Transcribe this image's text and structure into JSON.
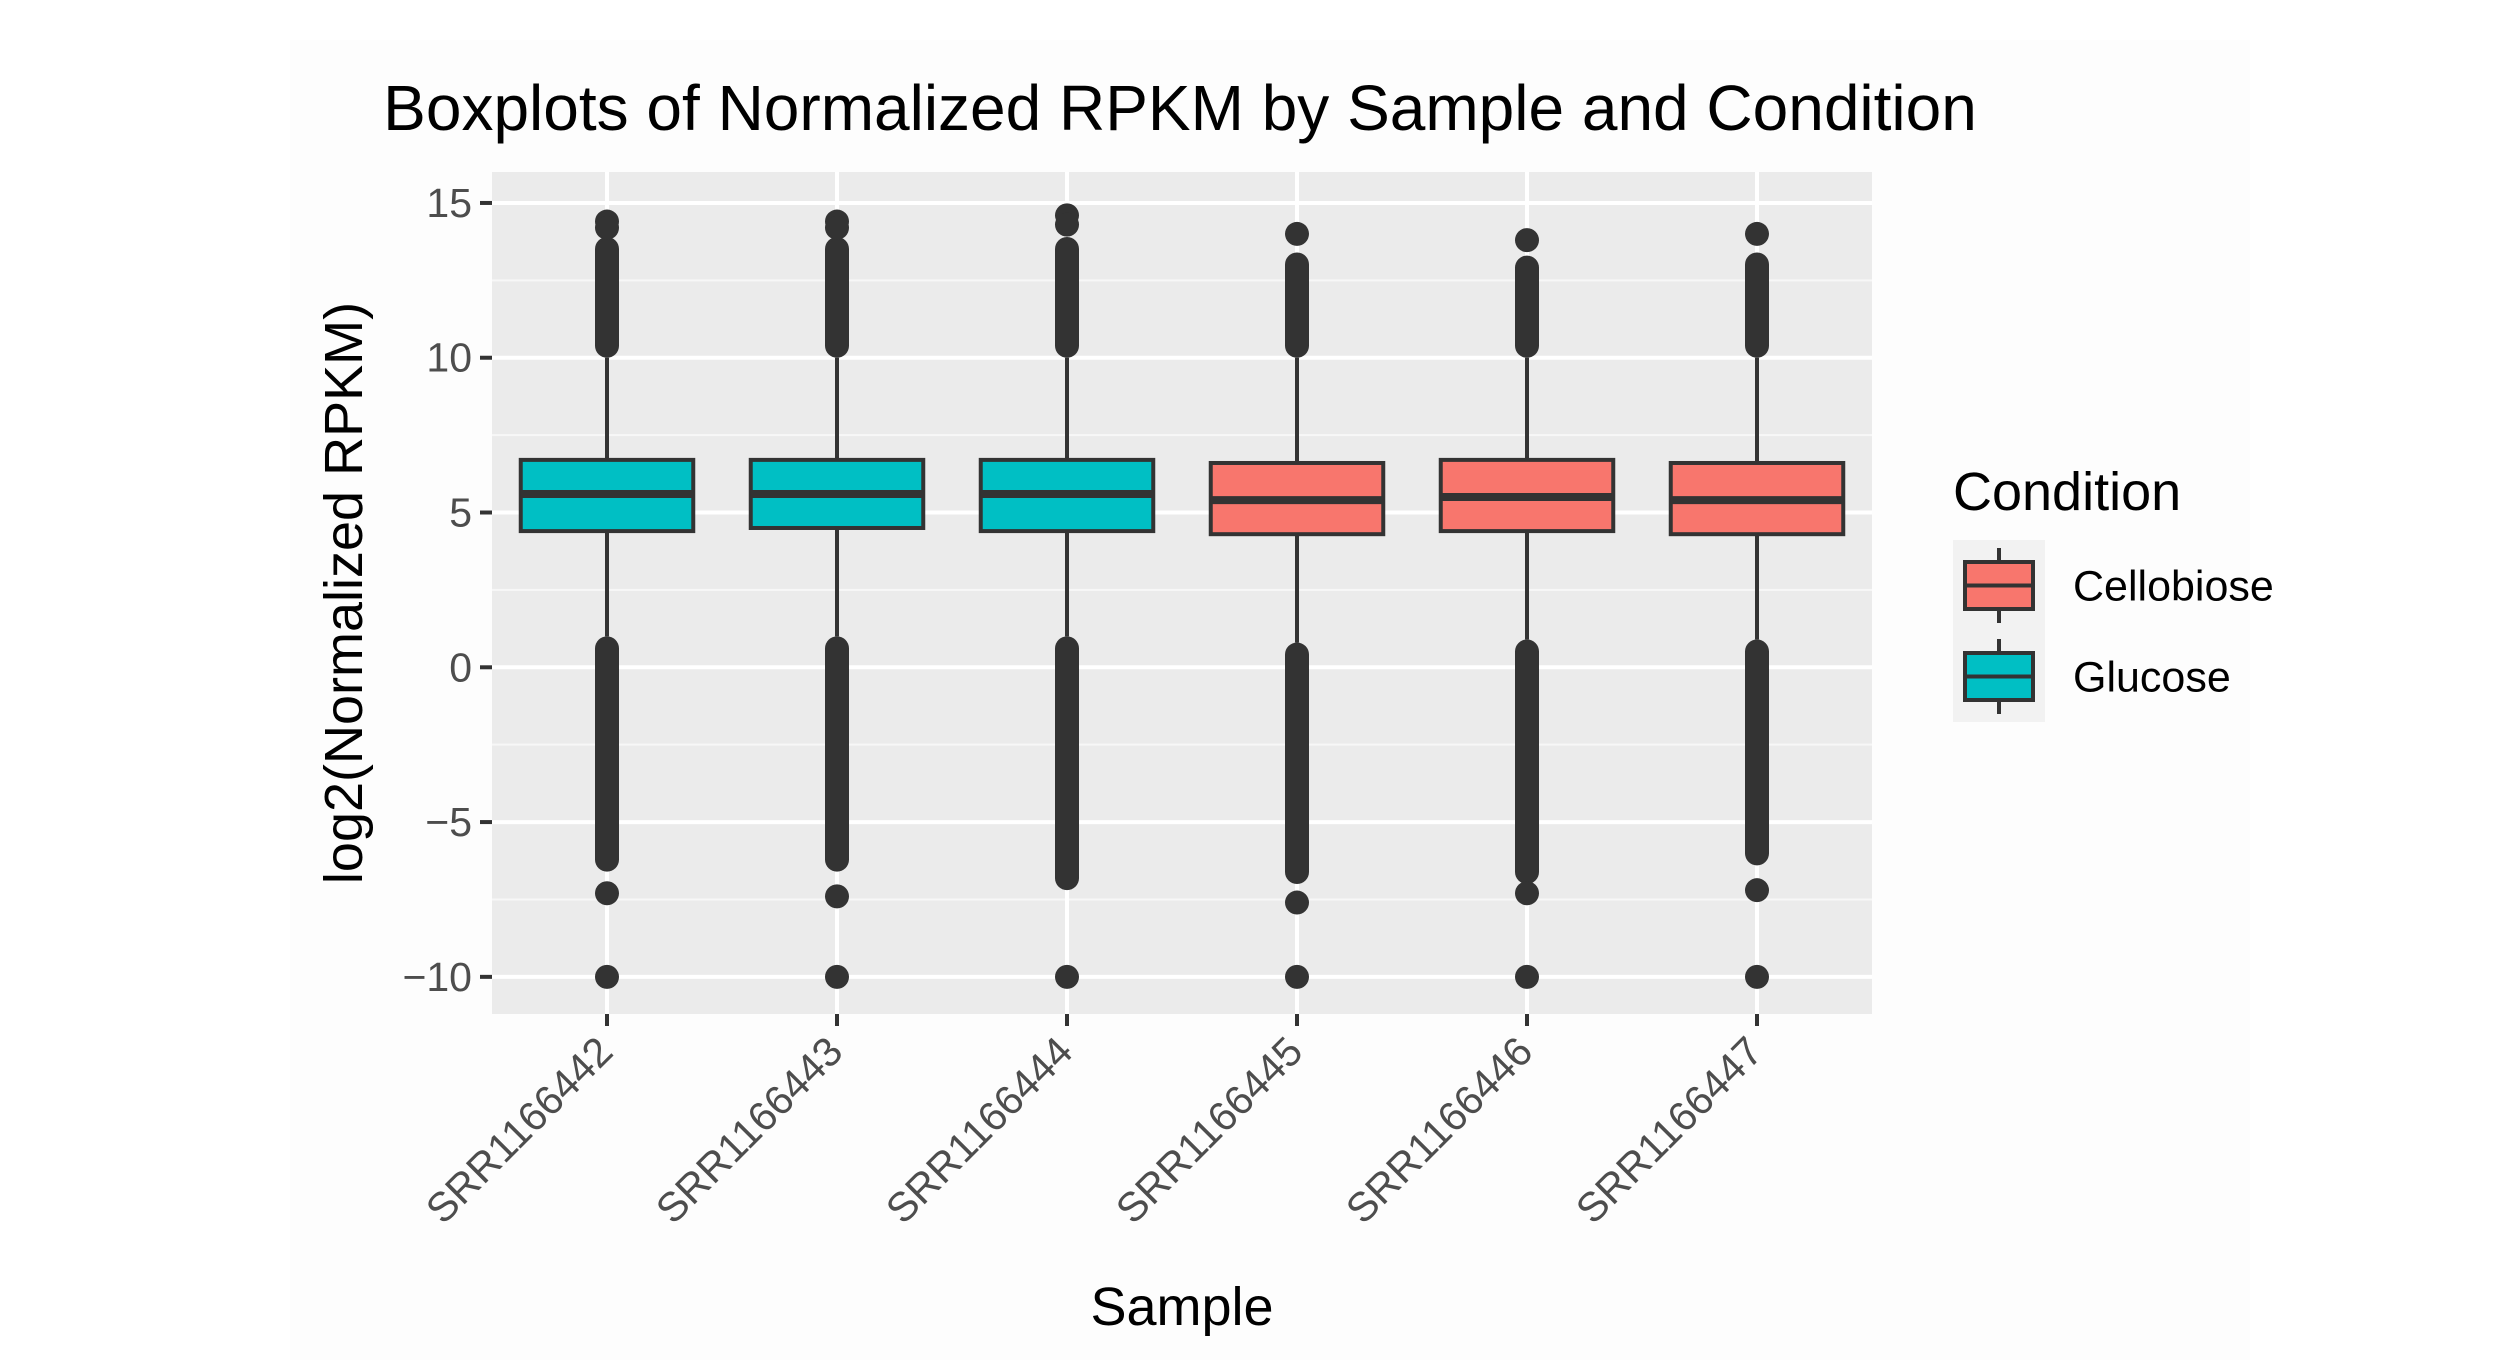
{
  "chart_data": {
    "type": "boxplot",
    "title": "Boxplots of Normalized RPKM by Sample and Condition",
    "xlabel": "Sample",
    "ylabel": "log2(Normalized RPKM)",
    "ylim": [
      -11.2,
      16.0
    ],
    "yticks": [
      -10,
      -5,
      0,
      5,
      10,
      15
    ],
    "ytick_labels": [
      "−10",
      "−5",
      "0",
      "5",
      "10",
      "15"
    ],
    "grid": true,
    "legend": {
      "title": "Condition",
      "position": "right",
      "entries": [
        {
          "label": "Cellobiose",
          "color": "#F8766D"
        },
        {
          "label": "Glucose",
          "color": "#00BFC4"
        }
      ]
    },
    "categories": [
      "SRR1166442",
      "SRR1166443",
      "SRR1166444",
      "SRR1166445",
      "SRR1166446",
      "SRR1166447"
    ],
    "boxes": [
      {
        "sample": "SRR1166442",
        "condition": "Glucose",
        "q1": 4.4,
        "median": 5.6,
        "q3": 6.7,
        "whisker_low": 1.0,
        "whisker_high": 10.0,
        "outlier_high_range": [
          10.0,
          13.9
        ],
        "outlier_low_range": [
          -6.6,
          1.0
        ],
        "outliers": [
          14.4,
          14.2,
          -7.3,
          -10.0
        ]
      },
      {
        "sample": "SRR1166443",
        "condition": "Glucose",
        "q1": 4.5,
        "median": 5.6,
        "q3": 6.7,
        "whisker_low": 1.0,
        "whisker_high": 10.0,
        "outlier_high_range": [
          10.0,
          13.9
        ],
        "outlier_low_range": [
          -6.6,
          1.0
        ],
        "outliers": [
          14.4,
          14.2,
          -7.4,
          -10.0
        ]
      },
      {
        "sample": "SRR1166444",
        "condition": "Glucose",
        "q1": 4.4,
        "median": 5.6,
        "q3": 6.7,
        "whisker_low": 1.0,
        "whisker_high": 10.0,
        "outlier_high_range": [
          10.0,
          13.9
        ],
        "outlier_low_range": [
          -7.2,
          1.0
        ],
        "outliers": [
          14.6,
          14.3,
          -10.0
        ]
      },
      {
        "sample": "SRR1166445",
        "condition": "Cellobiose",
        "q1": 4.3,
        "median": 5.4,
        "q3": 6.6,
        "whisker_low": 0.8,
        "whisker_high": 10.0,
        "outlier_high_range": [
          10.0,
          13.4
        ],
        "outlier_low_range": [
          -7.0,
          0.8
        ],
        "outliers": [
          14.0,
          -7.6,
          -10.0
        ]
      },
      {
        "sample": "SRR1166446",
        "condition": "Cellobiose",
        "q1": 4.4,
        "median": 5.5,
        "q3": 6.7,
        "whisker_low": 0.9,
        "whisker_high": 10.0,
        "outlier_high_range": [
          10.0,
          13.3
        ],
        "outlier_low_range": [
          -7.0,
          0.9
        ],
        "outliers": [
          13.8,
          -7.3,
          -10.0
        ]
      },
      {
        "sample": "SRR1166447",
        "condition": "Cellobiose",
        "q1": 4.3,
        "median": 5.4,
        "q3": 6.6,
        "whisker_low": 0.9,
        "whisker_high": 10.0,
        "outlier_high_range": [
          10.0,
          13.4
        ],
        "outlier_low_range": [
          -6.4,
          0.9
        ],
        "outliers": [
          14.0,
          -7.2,
          -10.0
        ]
      }
    ]
  }
}
